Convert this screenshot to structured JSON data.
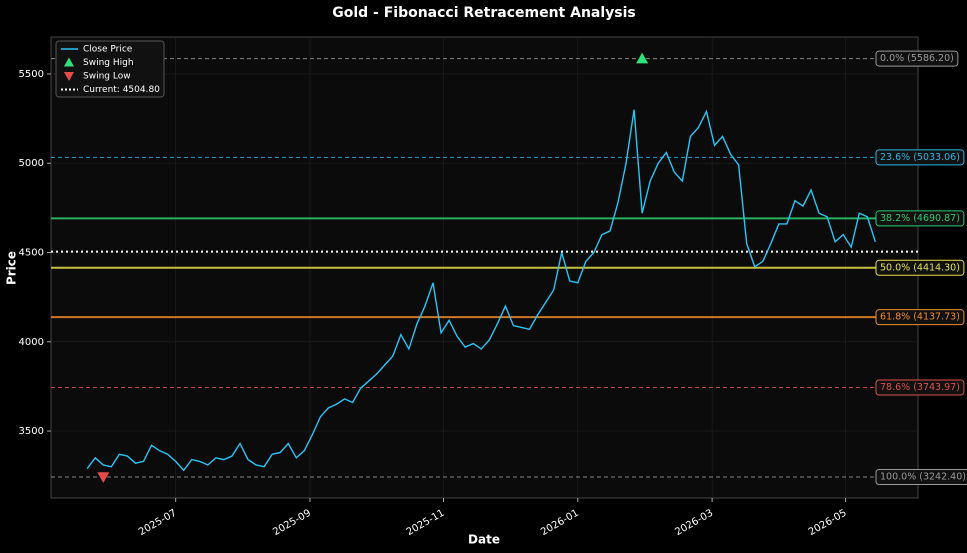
{
  "chart_data": {
    "type": "line",
    "title": "Gold - Fibonacci Retracement Analysis",
    "xlabel": "Date",
    "ylabel": "Price",
    "x": [
      2025.39,
      2025.4,
      2025.41,
      2025.42,
      2025.43,
      2025.44,
      2025.45,
      2025.46,
      2025.47,
      2025.48,
      2025.49,
      2025.5,
      2025.51,
      2025.52,
      2025.53,
      2025.54,
      2025.55,
      2025.56,
      2025.57,
      2025.58,
      2025.59,
      2025.6,
      2025.61,
      2025.62,
      2025.63,
      2025.64,
      2025.65,
      2025.66,
      2025.67,
      2025.68,
      2025.69,
      2025.7,
      2025.71,
      2025.72,
      2025.73,
      2025.74,
      2025.75,
      2025.76,
      2025.77,
      2025.78,
      2025.79,
      2025.8,
      2025.81,
      2025.82,
      2025.83,
      2025.84,
      2025.85,
      2025.86,
      2025.87,
      2025.88,
      2025.89,
      2025.9,
      2025.91,
      2025.92,
      2025.93,
      2025.94,
      2025.95,
      2025.96,
      2025.97,
      2025.98,
      2025.99,
      2026.0,
      2026.01,
      2026.02,
      2026.03,
      2026.04,
      2026.05,
      2026.06,
      2026.07,
      2026.08,
      2026.09,
      2026.1,
      2026.11,
      2026.12,
      2026.13,
      2026.14,
      2026.15,
      2026.16,
      2026.17,
      2026.18,
      2026.19,
      2026.2,
      2026.21,
      2026.22,
      2026.23,
      2026.24,
      2026.25,
      2026.26,
      2026.27,
      2026.28,
      2026.29,
      2026.3,
      2026.31,
      2026.32,
      2026.33,
      2026.34,
      2026.35,
      2026.36,
      2026.37
    ],
    "series": [
      {
        "name": "Close Price",
        "color": "#29c5f6",
        "values": [
          3290,
          3350,
          3310,
          3300,
          3370,
          3360,
          3320,
          3330,
          3420,
          3390,
          3370,
          3330,
          3280,
          3340,
          3330,
          3310,
          3350,
          3340,
          3360,
          3430,
          3340,
          3310,
          3300,
          3370,
          3380,
          3430,
          3350,
          3390,
          3480,
          3580,
          3630,
          3650,
          3680,
          3660,
          3740,
          3780,
          3820,
          3870,
          3920,
          4040,
          3960,
          4100,
          4200,
          4330,
          4050,
          4120,
          4030,
          3970,
          3990,
          3960,
          4010,
          4100,
          4200,
          4090,
          4080,
          4070,
          4150,
          4220,
          4290,
          4500,
          4340,
          4330,
          4450,
          4500,
          4600,
          4620,
          4780,
          5000,
          5300,
          4720,
          4900,
          5000,
          5060,
          4950,
          4900,
          5150,
          5200,
          5290,
          5100,
          5150,
          5050,
          4990,
          4550,
          4420,
          4450,
          4550,
          4660,
          4660,
          4790,
          4760,
          4850,
          4720,
          4700,
          4560,
          4600,
          4530,
          4720,
          4700,
          4560
        ]
      }
    ],
    "swing_high": {
      "name": "Swing High",
      "x": 2026.08,
      "value": 5586.2,
      "color": "#2ee27a"
    },
    "swing_low": {
      "name": "Swing Low",
      "x": 2025.41,
      "value": 3242.4,
      "color": "#e84a4a"
    },
    "current": {
      "name": "Current: 4504.80",
      "value": 4504.8,
      "color": "#ffffff"
    },
    "levels": [
      {
        "label": "0.0% (5586.20)",
        "value": 5586.2,
        "color": "#9a9a9a",
        "style": "dashed"
      },
      {
        "label": "23.6% (5033.06)",
        "value": 5033.06,
        "color": "#29b6e6",
        "style": "dashed"
      },
      {
        "label": "38.2% (4690.87)",
        "value": 4690.87,
        "color": "#2ecc71",
        "style": "solid"
      },
      {
        "label": "50.0% (4414.30)",
        "value": 4414.3,
        "color": "#e6e04a",
        "style": "solid"
      },
      {
        "label": "61.8% (4137.73)",
        "value": 4137.73,
        "color": "#f08c2a",
        "style": "solid"
      },
      {
        "label": "78.6% (3743.97)",
        "value": 3743.97,
        "color": "#e05050",
        "style": "dashed"
      },
      {
        "label": "100.0% (3242.40)",
        "value": 3242.4,
        "color": "#9a9a9a",
        "style": "dashed"
      }
    ],
    "xlim": [
      2025.345,
      2026.423
    ],
    "ylim": [
      3125,
      5707
    ],
    "xticks": [
      {
        "value": 2025.5,
        "label": "2025-07"
      },
      {
        "value": 2025.667,
        "label": "2025-09"
      },
      {
        "value": 2025.833,
        "label": "2025-11"
      },
      {
        "value": 2026.0,
        "label": "2026-01"
      },
      {
        "value": 2026.167,
        "label": "2026-03"
      },
      {
        "value": 2026.333,
        "label": "2026-05"
      }
    ],
    "yticks": [
      3500,
      4000,
      4500,
      5000,
      5500
    ],
    "grid": true,
    "legend": "upper left"
  }
}
